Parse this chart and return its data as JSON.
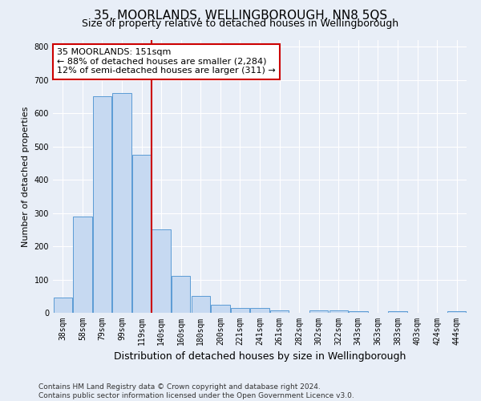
{
  "title": "35, MOORLANDS, WELLINGBOROUGH, NN8 5QS",
  "subtitle": "Size of property relative to detached houses in Wellingborough",
  "xlabel": "Distribution of detached houses by size in Wellingborough",
  "ylabel": "Number of detached properties",
  "bins": [
    "38sqm",
    "58sqm",
    "79sqm",
    "99sqm",
    "119sqm",
    "140sqm",
    "160sqm",
    "180sqm",
    "200sqm",
    "221sqm",
    "241sqm",
    "261sqm",
    "282sqm",
    "302sqm",
    "322sqm",
    "343sqm",
    "363sqm",
    "383sqm",
    "403sqm",
    "424sqm",
    "444sqm"
  ],
  "values": [
    45,
    290,
    650,
    660,
    475,
    250,
    110,
    50,
    25,
    15,
    15,
    8,
    0,
    8,
    8,
    5,
    0,
    5,
    0,
    0,
    5
  ],
  "bar_color": "#c6d9f1",
  "bar_edge_color": "#5b9bd5",
  "marker_bin_index": 5,
  "marker_color": "#cc0000",
  "annotation_line1": "35 MOORLANDS: 151sqm",
  "annotation_line2": "← 88% of detached houses are smaller (2,284)",
  "annotation_line3": "12% of semi-detached houses are larger (311) →",
  "annotation_box_color": "#ffffff",
  "annotation_box_edge": "#cc0000",
  "ylim": [
    0,
    820
  ],
  "yticks": [
    0,
    100,
    200,
    300,
    400,
    500,
    600,
    700,
    800
  ],
  "footer_line1": "Contains HM Land Registry data © Crown copyright and database right 2024.",
  "footer_line2": "Contains public sector information licensed under the Open Government Licence v3.0.",
  "bg_color": "#e8eef7",
  "plot_bg_color": "#e8eef7",
  "title_fontsize": 11,
  "subtitle_fontsize": 9,
  "xlabel_fontsize": 9,
  "ylabel_fontsize": 8,
  "tick_fontsize": 7,
  "footer_fontsize": 6.5,
  "annotation_fontsize": 8
}
